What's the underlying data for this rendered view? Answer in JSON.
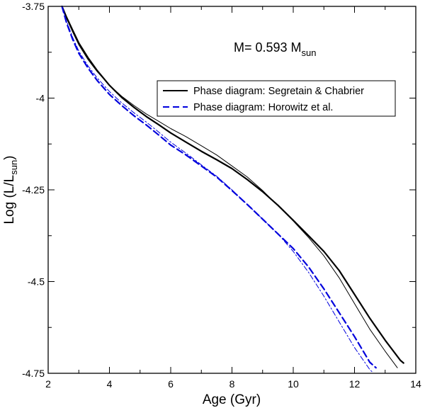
{
  "chart_data": {
    "type": "line",
    "title": "",
    "annotation": {
      "prefix": "M= 0.593 M",
      "subscript": "sun"
    },
    "xlabel": "Age (Gyr)",
    "ylabel": {
      "prefix": "Log (L/L",
      "subscript": "sun",
      "suffix": ")"
    },
    "xlim": [
      2,
      14
    ],
    "ylim": [
      -4.75,
      -3.75
    ],
    "xticks": [
      2,
      4,
      6,
      8,
      10,
      12,
      14
    ],
    "xtick_labels": [
      "2",
      "4",
      "6",
      "8",
      "10",
      "12",
      "14"
    ],
    "yticks": [
      -3.75,
      -4.0,
      -4.25,
      -4.5,
      -4.75
    ],
    "ytick_labels": [
      "-3.75",
      "-4",
      "-4.25",
      "-4.5",
      "-4.75"
    ],
    "grid": false,
    "legend_position": "top-right",
    "legend": [
      {
        "label": "Phase diagram: Segretain & Chabrier",
        "color": "#000000",
        "style": "solid"
      },
      {
        "label": "Phase diagram: Horowitz et al.",
        "color": "#0000dd",
        "style": "dashed"
      }
    ],
    "series": [
      {
        "name": "Segretain & Chabrier (thick)",
        "color": "#000000",
        "style": "solid",
        "width": 2.2,
        "x": [
          2.45,
          2.6,
          2.8,
          3.0,
          3.3,
          3.6,
          4.0,
          4.4,
          4.8,
          5.2,
          5.6,
          6.0,
          6.5,
          7.0,
          7.5,
          8.0,
          8.5,
          9.0,
          9.5,
          10.0,
          10.5,
          11.0,
          11.5,
          12.0,
          12.5,
          13.0,
          13.5,
          13.6
        ],
        "y": [
          -3.75,
          -3.78,
          -3.815,
          -3.85,
          -3.89,
          -3.925,
          -3.965,
          -3.998,
          -4.025,
          -4.05,
          -4.072,
          -4.095,
          -4.12,
          -4.145,
          -4.168,
          -4.192,
          -4.222,
          -4.255,
          -4.292,
          -4.333,
          -4.375,
          -4.418,
          -4.47,
          -4.535,
          -4.6,
          -4.66,
          -4.715,
          -4.722
        ]
      },
      {
        "name": "Segretain & Chabrier (thin)",
        "color": "#000000",
        "style": "solid",
        "width": 1.0,
        "x": [
          2.45,
          2.6,
          2.8,
          3.0,
          3.3,
          3.6,
          4.0,
          4.4,
          4.8,
          5.2,
          5.6,
          6.0,
          6.5,
          7.0,
          7.5,
          8.0,
          8.5,
          9.0,
          9.5,
          10.0,
          10.5,
          11.0,
          11.5,
          12.0,
          12.5,
          13.0,
          13.4
        ],
        "y": [
          -3.75,
          -3.783,
          -3.82,
          -3.855,
          -3.895,
          -3.928,
          -3.965,
          -3.995,
          -4.02,
          -4.043,
          -4.063,
          -4.083,
          -4.105,
          -4.13,
          -4.155,
          -4.185,
          -4.215,
          -4.252,
          -4.293,
          -4.335,
          -4.38,
          -4.43,
          -4.49,
          -4.56,
          -4.63,
          -4.69,
          -4.735
        ]
      },
      {
        "name": "Horowitz et al. (thick)",
        "color": "#0000dd",
        "style": "dashed",
        "width": 2.2,
        "x": [
          2.45,
          2.6,
          2.8,
          3.0,
          3.3,
          3.6,
          4.0,
          4.4,
          4.8,
          5.2,
          5.6,
          6.0,
          6.5,
          7.0,
          7.5,
          8.0,
          8.5,
          9.0,
          9.5,
          10.0,
          10.5,
          11.0,
          11.5,
          12.0,
          12.5,
          12.7
        ],
        "y": [
          -3.75,
          -3.795,
          -3.84,
          -3.878,
          -3.918,
          -3.952,
          -3.99,
          -4.02,
          -4.048,
          -4.073,
          -4.1,
          -4.128,
          -4.155,
          -4.185,
          -4.215,
          -4.252,
          -4.29,
          -4.33,
          -4.37,
          -4.41,
          -4.46,
          -4.52,
          -4.585,
          -4.65,
          -4.72,
          -4.735
        ]
      },
      {
        "name": "Horowitz et al. (thin)",
        "color": "#0000dd",
        "style": "dashdot",
        "width": 1.0,
        "x": [
          2.45,
          2.6,
          2.8,
          3.0,
          3.3,
          3.6,
          4.0,
          4.4,
          4.8,
          5.2,
          5.6,
          6.0,
          6.5,
          7.0,
          7.5,
          8.0,
          8.5,
          9.0,
          9.5,
          10.0,
          10.5,
          11.0,
          11.5,
          12.0,
          12.5,
          12.6
        ],
        "y": [
          -3.75,
          -3.79,
          -3.835,
          -3.872,
          -3.912,
          -3.945,
          -3.982,
          -4.013,
          -4.04,
          -4.065,
          -4.092,
          -4.12,
          -4.15,
          -4.182,
          -4.213,
          -4.25,
          -4.29,
          -4.33,
          -4.37,
          -4.418,
          -4.475,
          -4.54,
          -4.61,
          -4.68,
          -4.74,
          -4.748
        ]
      }
    ]
  }
}
